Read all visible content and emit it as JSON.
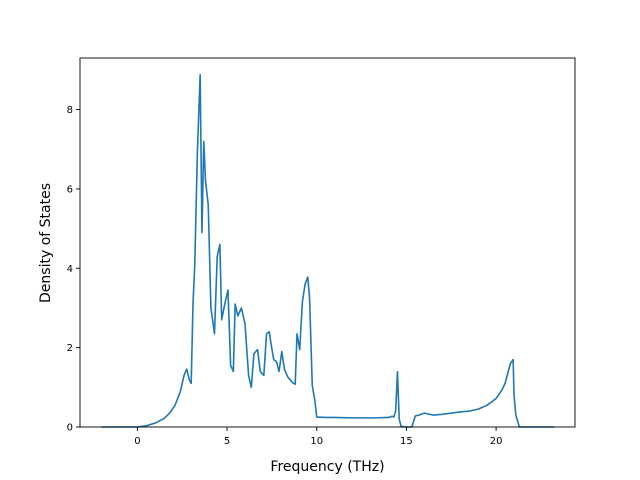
{
  "chart_data": {
    "type": "line",
    "title": "",
    "xlabel": "Frequency (THz)",
    "ylabel": "Density of States",
    "xlim": [
      -3.2,
      24.4
    ],
    "ylim": [
      0,
      9.3
    ],
    "xticks": [
      0,
      5,
      10,
      15,
      20
    ],
    "yticks": [
      0,
      2,
      4,
      6,
      8
    ],
    "grid": false,
    "legend": "none",
    "colors": {
      "line": "#1f77b4"
    },
    "series": [
      {
        "x": [
          -2.0,
          -1.0,
          0.0,
          0.5,
          1.0,
          1.5,
          1.8,
          2.1,
          2.4,
          2.6,
          2.75,
          2.9,
          3.0,
          3.1,
          3.2,
          3.35,
          3.5,
          3.6,
          3.7,
          3.8,
          3.95,
          4.1,
          4.3,
          4.45,
          4.6,
          4.7,
          4.85,
          5.05,
          5.2,
          5.35,
          5.45,
          5.6,
          5.8,
          6.0,
          6.2,
          6.35,
          6.5,
          6.7,
          6.85,
          7.05,
          7.2,
          7.35,
          7.45,
          7.6,
          7.75,
          7.9,
          8.05,
          8.2,
          8.4,
          8.65,
          8.8,
          8.9,
          9.05,
          9.2,
          9.35,
          9.5,
          9.6,
          9.75,
          9.9,
          10.0,
          10.5,
          11.0,
          12.0,
          13.0,
          14.0,
          14.2,
          14.3,
          14.4,
          14.5,
          14.6,
          14.7,
          14.9,
          15.3,
          15.5,
          15.7,
          16.0,
          16.5,
          17.0,
          17.5,
          18.0,
          18.5,
          19.0,
          19.5,
          19.8,
          20.0,
          20.2,
          20.35,
          20.5,
          20.65,
          20.8,
          20.95,
          21.0,
          21.1,
          21.3,
          22.0,
          23.2
        ],
        "y": [
          0.0,
          0.0,
          0.0,
          0.03,
          0.1,
          0.22,
          0.35,
          0.55,
          0.9,
          1.3,
          1.46,
          1.18,
          1.1,
          3.1,
          4.1,
          7.0,
          8.88,
          4.9,
          7.2,
          6.2,
          5.6,
          3.0,
          2.35,
          4.3,
          4.6,
          2.7,
          3.05,
          3.45,
          1.55,
          1.4,
          3.1,
          2.8,
          3.0,
          2.6,
          1.3,
          1.0,
          1.85,
          1.95,
          1.4,
          1.3,
          2.35,
          2.4,
          2.1,
          1.7,
          1.65,
          1.4,
          1.9,
          1.45,
          1.25,
          1.12,
          1.08,
          2.35,
          1.95,
          3.15,
          3.6,
          3.78,
          3.25,
          1.05,
          0.65,
          0.25,
          0.24,
          0.24,
          0.23,
          0.23,
          0.24,
          0.27,
          0.25,
          0.4,
          1.39,
          0.2,
          0.02,
          0.0,
          0.0,
          0.28,
          0.3,
          0.35,
          0.3,
          0.32,
          0.35,
          0.38,
          0.4,
          0.45,
          0.55,
          0.65,
          0.72,
          0.85,
          0.95,
          1.1,
          1.35,
          1.6,
          1.7,
          0.8,
          0.3,
          0.0,
          0.0,
          0.0
        ]
      }
    ]
  }
}
